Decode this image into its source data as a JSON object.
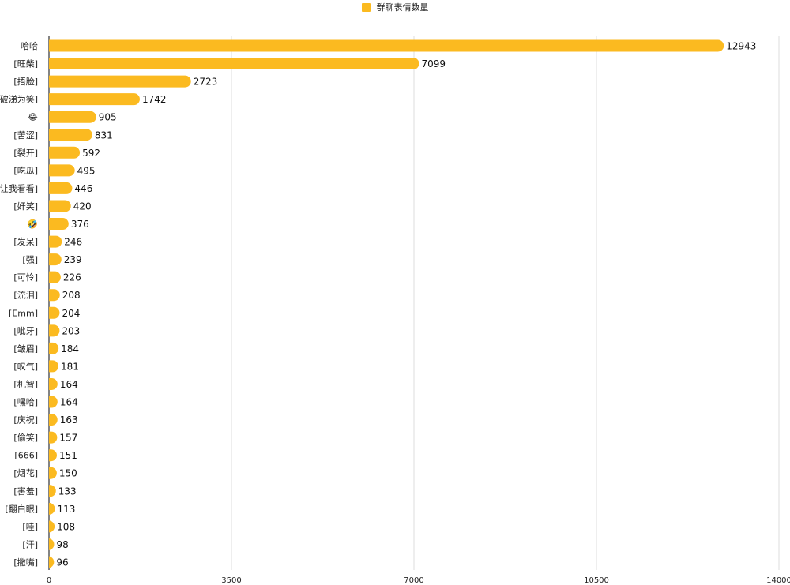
{
  "chart_data": {
    "type": "bar",
    "orientation": "horizontal",
    "legend_position": "top-center",
    "grid": true,
    "xlim": [
      0,
      14000
    ],
    "xticks": [
      0,
      3500,
      7000,
      10500,
      14000
    ],
    "series": [
      {
        "name": "群聊表情数量",
        "color": "#FBBA20",
        "values": [
          12943,
          7099,
          2723,
          1742,
          905,
          831,
          592,
          495,
          446,
          420,
          376,
          246,
          239,
          226,
          208,
          204,
          203,
          184,
          181,
          164,
          164,
          163,
          157,
          151,
          150,
          133,
          113,
          108,
          98,
          96
        ]
      }
    ],
    "categories": [
      "哈哈",
      "[旺柴]",
      "[捂脸]",
      "[破涕为笑]",
      "😂",
      "[苦涩]",
      "[裂开]",
      "[吃瓜]",
      "[让我看看]",
      "[奸笑]",
      "🤣",
      "[发呆]",
      "[强]",
      "[可怜]",
      "[流泪]",
      "[Emm]",
      "[呲牙]",
      "[皱眉]",
      "[叹气]",
      "[机智]",
      "[嘿哈]",
      "[庆祝]",
      "[偷笑]",
      "[666]",
      "[烟花]",
      "[害羞]",
      "[翻白眼]",
      "[哇]",
      "[汗]",
      "[撇嘴]"
    ]
  }
}
